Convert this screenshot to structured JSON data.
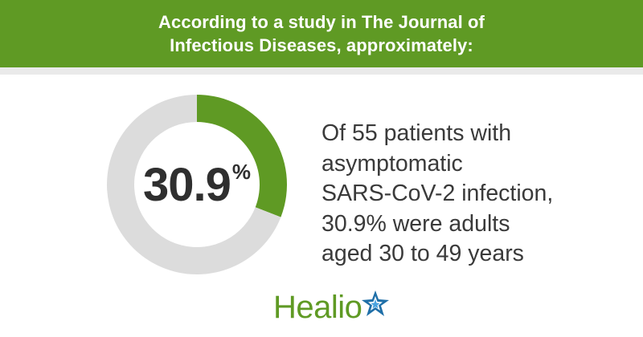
{
  "header": {
    "line1": "According to a study in The Journal of",
    "line2": "Infectious Diseases, approximately:"
  },
  "chart_data": {
    "type": "pie",
    "categories": [
      "Adults aged 30 to 49 years",
      "Other"
    ],
    "values": [
      30.9,
      69.1
    ],
    "center_value": "30.9",
    "center_unit": "%"
  },
  "description": {
    "lines": [
      "Of 55 patients with",
      "asymptomatic",
      "SARS-CoV-2 infection,",
      "30.9% were adults",
      "aged 30 to 49 years"
    ]
  },
  "logo": {
    "text": "Healio",
    "icon": "star-icon"
  },
  "colors": {
    "header_bg": "#5f9a24",
    "segment_highlight": "#5f9a24",
    "segment_rest": "#dcdcdc",
    "logo_green": "#5f9a24",
    "logo_star_blue": "#1f6fa8"
  }
}
